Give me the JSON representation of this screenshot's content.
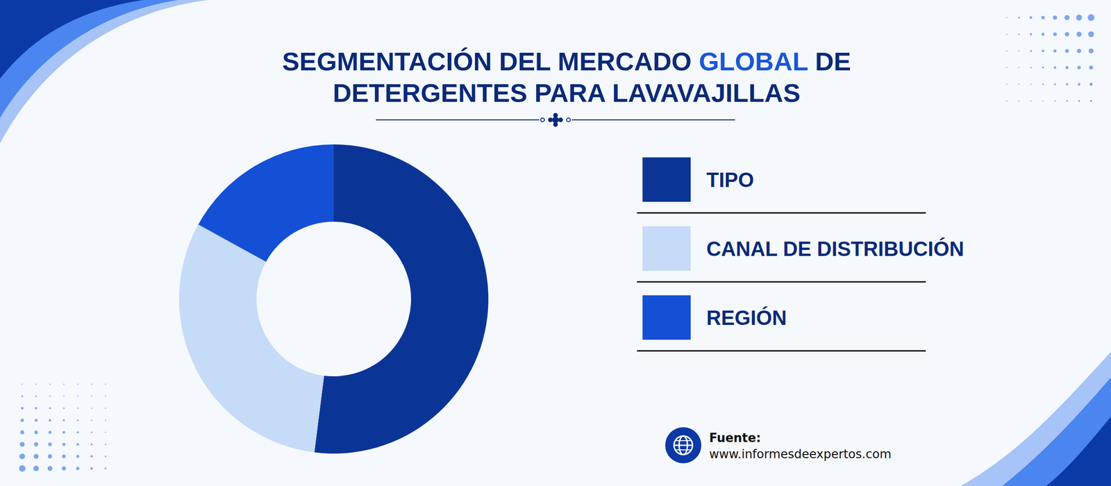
{
  "chart_data": {
    "type": "pie",
    "title": "SEGMENTACIÓN DEL MERCADO GLOBAL DE DETERGENTES PARA LAVAVAJILLAS",
    "title_highlight": "GLOBAL",
    "categories": [
      "TIPO",
      "CANAL DE DISTRIBUCIÓN",
      "REGIÓN"
    ],
    "values": [
      52,
      31,
      17
    ],
    "colors": [
      "#0a3597",
      "#c5dbf7",
      "#1350d6"
    ],
    "legend": "right",
    "data_labels": false,
    "source_label": "Fuente:",
    "source": "www.informesdeexpertos.com"
  }
}
